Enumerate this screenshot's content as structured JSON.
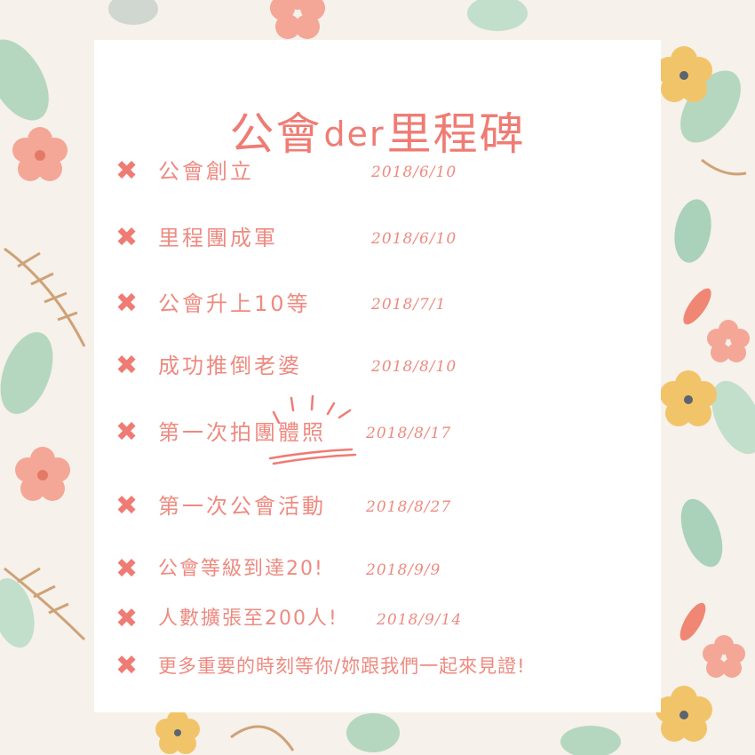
{
  "title": {
    "part1": "公會",
    "part2": "der",
    "part3": "里程碑"
  },
  "milestones": [
    {
      "label": "公會創立",
      "date": "2018/6/10"
    },
    {
      "label": "里程團成軍",
      "date": "2018/6/10"
    },
    {
      "label": "公會升上10等",
      "date": "2018/7/1"
    },
    {
      "label": "成功推倒老婆",
      "date": "2018/8/10"
    },
    {
      "label": "第一次拍團體照",
      "date": "2018/8/17"
    },
    {
      "label": "第一次公會活動",
      "date": "2018/8/27"
    },
    {
      "label": "公會等級到達20!",
      "date": "2018/9/9"
    },
    {
      "label": "人數擴張至200人!",
      "date": "2018/9/14"
    },
    {
      "label": "更多重要的時刻等你/妳跟我們一起來見證!",
      "date": ""
    }
  ],
  "bullet_glyph": "✖",
  "bullet_icon": "cross-icon",
  "colors": {
    "accent": "#ef7c74",
    "card": "#ffffff",
    "background": "#f6f1ea"
  }
}
